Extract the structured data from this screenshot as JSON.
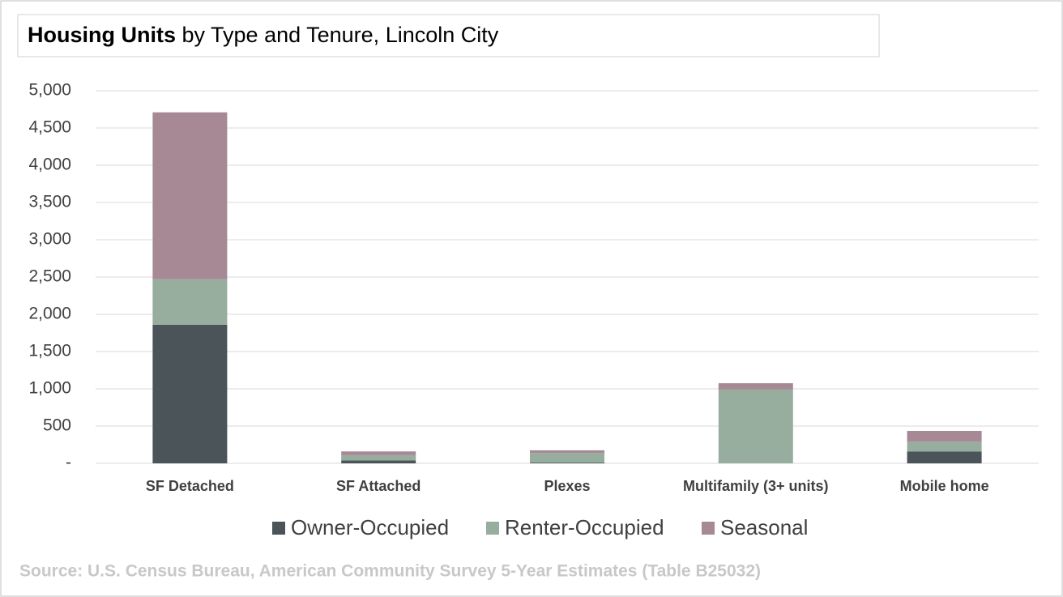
{
  "chart_data": {
    "type": "bar",
    "stacked": true,
    "title": [
      "Housing Units",
      " by Type and Tenure, Lincoln City"
    ],
    "categories": [
      "SF Detached",
      "SF Attached",
      "Plexes",
      "Multifamily (3+ units)",
      "Mobile home"
    ],
    "series": [
      {
        "name": "Owner-Occupied",
        "color": "#4a5459",
        "values": [
          1860,
          40,
          10,
          0,
          160
        ]
      },
      {
        "name": "Renter-Occupied",
        "color": "#97ad9e",
        "values": [
          610,
          70,
          130,
          990,
          130
        ]
      },
      {
        "name": "Seasonal",
        "color": "#a68994",
        "values": [
          2240,
          50,
          35,
          85,
          145
        ]
      }
    ],
    "ylim": [
      0,
      5000
    ],
    "yticks": [
      {
        "value": 0,
        "label": "-"
      },
      {
        "value": 500,
        "label": "500"
      },
      {
        "value": 1000,
        "label": "1,000"
      },
      {
        "value": 1500,
        "label": "1,500"
      },
      {
        "value": 2000,
        "label": "2,000"
      },
      {
        "value": 2500,
        "label": "2,500"
      },
      {
        "value": 3000,
        "label": "3,000"
      },
      {
        "value": 3500,
        "label": "3,500"
      },
      {
        "value": 4000,
        "label": "4,000"
      },
      {
        "value": 4500,
        "label": "4,500"
      },
      {
        "value": 5000,
        "label": "5,000"
      }
    ],
    "grid": true,
    "legend": "bottom",
    "source": "Source: U.S. Census Bureau, American Community Survey 5-Year Estimates (Table B25032)"
  }
}
